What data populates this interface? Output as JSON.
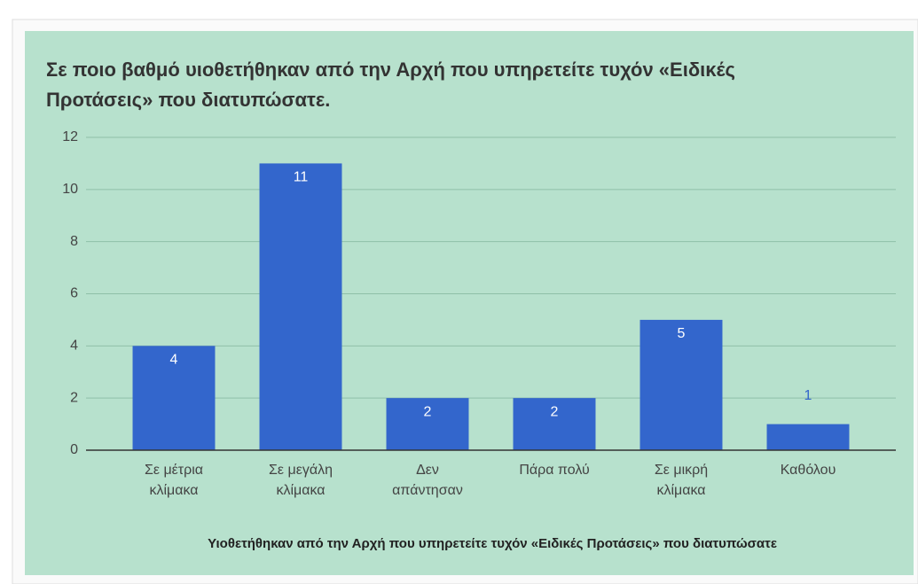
{
  "chart_data": {
    "type": "bar",
    "title": [
      "Σε ποιο βαθμό υιοθετήθηκαν από την Αρχή που υπηρετείτε τυχόν «Ειδικές",
      "Προτάσεις» που διατυπώσατε."
    ],
    "x_label": "Υιοθετήθηκαν από την Αρχή που υπηρετείτε τυχόν «Ειδικές Προτάσεις» που διατυπώσατε",
    "categories": [
      [
        "Σε μέτρια",
        "κλίμακα"
      ],
      [
        "Σε μεγάλη",
        "κλίμακα"
      ],
      [
        "Δεν",
        "απάντησαν"
      ],
      [
        "Πάρα πολύ"
      ],
      [
        "Σε μικρή",
        "κλίμακα"
      ],
      [
        "Καθόλου"
      ]
    ],
    "values": [
      4,
      11,
      2,
      2,
      5,
      1
    ],
    "color": "#3366cc",
    "ylim": [
      0,
      12
    ],
    "yticks": [
      0,
      2,
      4,
      6,
      8,
      10,
      12
    ],
    "grid": true
  }
}
